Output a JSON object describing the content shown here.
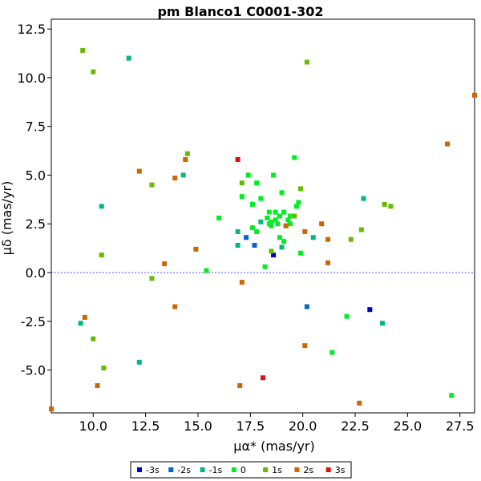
{
  "chart_data": {
    "type": "scatter",
    "title": "pm Blanco1  C0001-302",
    "xlabel": "μα* (mas/yr)",
    "ylabel": "μδ (mas/yr)",
    "xlim": [
      8.0,
      28.2
    ],
    "ylim": [
      -7.2,
      13.0
    ],
    "xticks": [
      10.0,
      12.5,
      15.0,
      17.5,
      20.0,
      22.5,
      25.0,
      27.5
    ],
    "yticks": [
      -5.0,
      -2.5,
      0.0,
      2.5,
      5.0,
      7.5,
      10.0,
      12.5
    ],
    "xtick_labels": [
      "10.0",
      "12.5",
      "15.0",
      "17.5",
      "20.0",
      "22.5",
      "25.0",
      "27.5"
    ],
    "ytick_labels": [
      "-5.0",
      "-2.5",
      "0.0",
      "2.5",
      "5.0",
      "7.5",
      "10.0",
      "12.5"
    ],
    "reference_line": {
      "y": 0.0,
      "style": "dashed",
      "color": "#5555ff"
    },
    "grid": false,
    "legend_position": "bottom",
    "series": [
      {
        "name": "-3s",
        "color": "#0000cc",
        "points": [
          [
            18.6,
            0.9
          ],
          [
            23.2,
            -1.9
          ]
        ]
      },
      {
        "name": "-2s",
        "color": "#0066cc",
        "points": [
          [
            17.3,
            1.8
          ],
          [
            17.7,
            1.4
          ],
          [
            20.2,
            -1.75
          ],
          [
            18.9,
            2.9
          ]
        ]
      },
      {
        "name": "-1s",
        "color": "#00bb77",
        "points": [
          [
            11.7,
            11.0
          ],
          [
            10.4,
            3.4
          ],
          [
            14.3,
            5.0
          ],
          [
            9.4,
            -2.6
          ],
          [
            12.2,
            -4.6
          ],
          [
            16.9,
            2.1
          ],
          [
            16.9,
            1.4
          ],
          [
            18.0,
            2.6
          ],
          [
            19.0,
            1.3
          ],
          [
            20.5,
            1.8
          ],
          [
            22.9,
            3.8
          ],
          [
            23.8,
            -2.6
          ]
        ]
      },
      {
        "name": "0",
        "color": "#00ee22",
        "points": [
          [
            15.4,
            0.1
          ],
          [
            16.0,
            2.8
          ],
          [
            17.1,
            3.9
          ],
          [
            17.4,
            5.0
          ],
          [
            17.6,
            3.5
          ],
          [
            17.8,
            4.6
          ],
          [
            17.8,
            2.1
          ],
          [
            17.6,
            2.3
          ],
          [
            18.0,
            3.8
          ],
          [
            18.2,
            0.3
          ],
          [
            18.3,
            2.8
          ],
          [
            18.4,
            3.1
          ],
          [
            18.5,
            2.6
          ],
          [
            18.5,
            2.4
          ],
          [
            18.6,
            5.0
          ],
          [
            18.7,
            3.1
          ],
          [
            18.7,
            2.7
          ],
          [
            18.8,
            2.5
          ],
          [
            18.9,
            2.9
          ],
          [
            18.9,
            1.8
          ],
          [
            19.0,
            4.1
          ],
          [
            19.1,
            3.1
          ],
          [
            19.1,
            1.6
          ],
          [
            19.2,
            2.4
          ],
          [
            19.3,
            2.7
          ],
          [
            19.4,
            2.9
          ],
          [
            19.5,
            2.9
          ],
          [
            19.6,
            5.9
          ],
          [
            19.7,
            3.4
          ],
          [
            19.8,
            3.6
          ],
          [
            19.9,
            1.0
          ],
          [
            18.4,
            2.5
          ],
          [
            21.4,
            -4.1
          ],
          [
            22.1,
            -2.25
          ],
          [
            27.1,
            -6.3
          ],
          [
            19.4,
            2.5
          ]
        ]
      },
      {
        "name": "1s",
        "color": "#66bb00",
        "points": [
          [
            9.5,
            11.4
          ],
          [
            10.0,
            10.3
          ],
          [
            10.4,
            0.9
          ],
          [
            10.0,
            -3.4
          ],
          [
            10.5,
            -4.9
          ],
          [
            12.8,
            4.5
          ],
          [
            12.8,
            -0.3
          ],
          [
            14.5,
            6.1
          ],
          [
            17.1,
            4.6
          ],
          [
            18.5,
            1.1
          ],
          [
            19.6,
            2.9
          ],
          [
            19.9,
            4.3
          ],
          [
            20.2,
            10.8
          ],
          [
            22.3,
            1.7
          ],
          [
            22.8,
            2.2
          ],
          [
            23.9,
            3.5
          ],
          [
            24.2,
            3.4
          ]
        ]
      },
      {
        "name": "2s",
        "color": "#cc6600",
        "points": [
          [
            8.0,
            -7.0
          ],
          [
            9.6,
            -2.3
          ],
          [
            10.2,
            -5.8
          ],
          [
            12.2,
            5.2
          ],
          [
            13.4,
            0.45
          ],
          [
            13.9,
            4.85
          ],
          [
            13.9,
            -1.75
          ],
          [
            14.4,
            5.8
          ],
          [
            14.9,
            1.2
          ],
          [
            17.1,
            -0.5
          ],
          [
            17.0,
            -5.8
          ],
          [
            19.2,
            2.4
          ],
          [
            20.1,
            2.1
          ],
          [
            20.1,
            -3.75
          ],
          [
            20.9,
            2.5
          ],
          [
            21.2,
            1.7
          ],
          [
            21.2,
            0.5
          ],
          [
            22.7,
            -6.7
          ],
          [
            26.9,
            6.6
          ],
          [
            28.2,
            9.1
          ]
        ]
      },
      {
        "name": "3s",
        "color": "#dd1111",
        "points": [
          [
            16.9,
            5.8
          ],
          [
            18.1,
            -5.4
          ]
        ]
      }
    ]
  }
}
